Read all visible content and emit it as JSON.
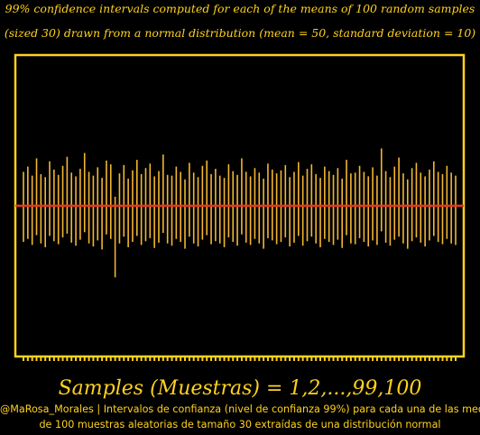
{
  "title_line1": "99% confidence intervals computed for each of the means of 100 random samples",
  "title_line2": "(sized 30) drawn from a normal distribution (mean = 50, standard deviation = 10)",
  "xlabel": "Samples (Muestras) = 1,2,...,99,100",
  "credit_line1": "@MaRosa_Morales | Intervalos de confianza (nivel de confianza 99%) para cada una de las medias",
  "credit_line2": "de 100 muestras aleatorias de tamaño 30 extraídas de una distribución normal",
  "colors": {
    "background": "#000000",
    "frame": "#ffd21f",
    "interval": "#f2b632",
    "mean_line": "#e8361f",
    "text": "#ffd21f"
  },
  "chart_data": {
    "type": "errorbar",
    "x": [
      1,
      2,
      3,
      4,
      5,
      6,
      7,
      8,
      9,
      10,
      11,
      12,
      13,
      14,
      15,
      16,
      17,
      18,
      19,
      20,
      21,
      22,
      23,
      24,
      25,
      26,
      27,
      28,
      29,
      30,
      31,
      32,
      33,
      34,
      35,
      36,
      37,
      38,
      39,
      40,
      41,
      42,
      43,
      44,
      45,
      46,
      47,
      48,
      49,
      50,
      51,
      52,
      53,
      54,
      55,
      56,
      57,
      58,
      59,
      60,
      61,
      62,
      63,
      64,
      65,
      66,
      67,
      68,
      69,
      70,
      71,
      72,
      73,
      74,
      75,
      76,
      77,
      78,
      79,
      80,
      81,
      82,
      83,
      84,
      85,
      86,
      87,
      88,
      89,
      90,
      91,
      92,
      93,
      94,
      95,
      96,
      97,
      98,
      99,
      100
    ],
    "population_mean": 50,
    "ylim": [
      30,
      70
    ],
    "grid": false,
    "intervals": [
      [
        45.2,
        54.5
      ],
      [
        45.6,
        55.2
      ],
      [
        44.8,
        54.0
      ],
      [
        46.1,
        56.3
      ],
      [
        45.0,
        54.2
      ],
      [
        44.5,
        53.8
      ],
      [
        46.0,
        55.9
      ],
      [
        45.3,
        54.8
      ],
      [
        44.9,
        54.1
      ],
      [
        45.8,
        55.3
      ],
      [
        46.3,
        56.5
      ],
      [
        45.1,
        54.4
      ],
      [
        44.7,
        53.9
      ],
      [
        45.5,
        54.9
      ],
      [
        46.5,
        57.0
      ],
      [
        45.0,
        54.5
      ],
      [
        44.6,
        54.0
      ],
      [
        45.4,
        55.1
      ],
      [
        44.2,
        53.7
      ],
      [
        46.2,
        56.0
      ],
      [
        45.6,
        55.5
      ],
      [
        40.5,
        51.2
      ],
      [
        45.0,
        54.3
      ],
      [
        45.9,
        55.4
      ],
      [
        44.5,
        53.6
      ],
      [
        45.2,
        54.7
      ],
      [
        46.0,
        56.1
      ],
      [
        44.8,
        54.2
      ],
      [
        45.3,
        55.0
      ],
      [
        45.7,
        55.6
      ],
      [
        44.4,
        53.9
      ],
      [
        45.1,
        54.6
      ],
      [
        46.4,
        56.8
      ],
      [
        45.0,
        54.1
      ],
      [
        44.7,
        54.0
      ],
      [
        45.6,
        55.2
      ],
      [
        45.2,
        54.5
      ],
      [
        44.3,
        53.5
      ],
      [
        45.9,
        55.7
      ],
      [
        45.0,
        54.4
      ],
      [
        44.6,
        53.8
      ],
      [
        45.5,
        55.3
      ],
      [
        46.1,
        56.0
      ],
      [
        44.9,
        54.2
      ],
      [
        45.3,
        54.9
      ],
      [
        45.0,
        54.0
      ],
      [
        44.5,
        53.7
      ],
      [
        45.8,
        55.5
      ],
      [
        45.2,
        54.6
      ],
      [
        44.7,
        54.1
      ],
      [
        46.2,
        56.3
      ],
      [
        45.1,
        54.5
      ],
      [
        44.8,
        53.9
      ],
      [
        45.6,
        55.0
      ],
      [
        45.0,
        54.4
      ],
      [
        44.3,
        53.6
      ],
      [
        45.7,
        55.6
      ],
      [
        45.4,
        54.8
      ],
      [
        44.9,
        54.3
      ],
      [
        45.2,
        54.7
      ],
      [
        45.8,
        55.4
      ],
      [
        44.6,
        53.8
      ],
      [
        45.1,
        54.5
      ],
      [
        46.0,
        55.8
      ],
      [
        44.7,
        54.0
      ],
      [
        45.3,
        54.9
      ],
      [
        45.9,
        55.5
      ],
      [
        45.0,
        54.2
      ],
      [
        44.5,
        53.7
      ],
      [
        45.6,
        55.2
      ],
      [
        45.2,
        54.6
      ],
      [
        44.8,
        54.1
      ],
      [
        45.5,
        55.0
      ],
      [
        44.4,
        53.6
      ],
      [
        46.1,
        56.1
      ],
      [
        45.0,
        54.3
      ],
      [
        44.9,
        54.4
      ],
      [
        45.7,
        55.3
      ],
      [
        45.2,
        54.5
      ],
      [
        44.6,
        53.9
      ],
      [
        45.4,
        55.1
      ],
      [
        44.8,
        54.0
      ],
      [
        46.6,
        57.6
      ],
      [
        45.1,
        54.6
      ],
      [
        44.7,
        53.8
      ],
      [
        45.5,
        55.2
      ],
      [
        45.9,
        56.4
      ],
      [
        45.0,
        54.3
      ],
      [
        44.3,
        53.5
      ],
      [
        45.3,
        55.0
      ],
      [
        45.8,
        55.7
      ],
      [
        45.1,
        54.4
      ],
      [
        44.6,
        53.9
      ],
      [
        45.4,
        54.8
      ],
      [
        46.0,
        55.9
      ],
      [
        45.2,
        54.5
      ],
      [
        44.9,
        54.2
      ],
      [
        45.6,
        55.3
      ],
      [
        45.0,
        54.4
      ],
      [
        44.8,
        54.0
      ]
    ]
  }
}
